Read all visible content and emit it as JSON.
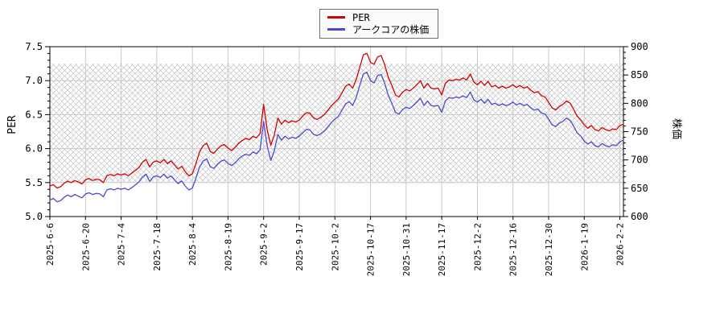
{
  "legend": {
    "items": [
      {
        "label": "PER",
        "color": "#d40000"
      },
      {
        "label": "アークコアの株価",
        "color": "#4a4ad0"
      }
    ]
  },
  "chart_data": {
    "type": "line",
    "title": "",
    "grid": true,
    "legend_position": "top-center",
    "hatch_band": {
      "axis": "left",
      "from": 5.5,
      "to": 7.25
    },
    "x_tick_labels": [
      "2025-6-6",
      "2025-6-20",
      "2025-7-4",
      "2025-7-18",
      "2025-8-4",
      "2025-8-19",
      "2025-9-2",
      "2025-9-17",
      "2025-10-2",
      "2025-10-17",
      "2025-10-31",
      "2025-11-17",
      "2025-12-2",
      "2025-12-16",
      "2025-12-30",
      "2026-1-19",
      "2026-2-2"
    ],
    "left_axis": {
      "label": "PER",
      "min": 5.0,
      "max": 7.5,
      "tick_step": 0.5,
      "minor_step": 0.1,
      "ticks": [
        "5.0",
        "5.5",
        "6.0",
        "6.5",
        "7.0",
        "7.5"
      ]
    },
    "right_axis": {
      "label": "株価",
      "min": 600,
      "max": 900,
      "tick_step": 50,
      "minor_step": 10,
      "ticks": [
        "600",
        "650",
        "700",
        "750",
        "800",
        "850",
        "900"
      ]
    },
    "series": [
      {
        "name": "PER",
        "axis": "left",
        "color": "#d40000",
        "values": [
          5.45,
          5.47,
          5.42,
          5.44,
          5.49,
          5.52,
          5.5,
          5.53,
          5.51,
          5.48,
          5.54,
          5.56,
          5.53,
          5.55,
          5.54,
          5.5,
          5.6,
          5.62,
          5.6,
          5.63,
          5.61,
          5.63,
          5.6,
          5.64,
          5.68,
          5.72,
          5.8,
          5.84,
          5.73,
          5.8,
          5.82,
          5.79,
          5.84,
          5.78,
          5.82,
          5.76,
          5.7,
          5.74,
          5.66,
          5.6,
          5.63,
          5.78,
          5.95,
          6.04,
          6.08,
          5.96,
          5.93,
          5.99,
          6.04,
          6.06,
          6.01,
          5.97,
          6.02,
          6.08,
          6.12,
          6.15,
          6.13,
          6.18,
          6.16,
          6.22,
          6.65,
          6.28,
          6.05,
          6.2,
          6.45,
          6.36,
          6.42,
          6.38,
          6.41,
          6.39,
          6.42,
          6.48,
          6.53,
          6.52,
          6.45,
          6.43,
          6.46,
          6.5,
          6.56,
          6.63,
          6.68,
          6.73,
          6.82,
          6.92,
          6.95,
          6.89,
          7.02,
          7.2,
          7.38,
          7.4,
          7.27,
          7.24,
          7.35,
          7.37,
          7.23,
          7.05,
          6.93,
          6.79,
          6.76,
          6.83,
          6.87,
          6.85,
          6.89,
          6.94,
          7.0,
          6.89,
          6.96,
          6.89,
          6.88,
          6.89,
          6.79,
          6.96,
          7.01,
          7.0,
          7.02,
          7.01,
          7.04,
          7.01,
          7.1,
          6.98,
          6.94,
          6.99,
          6.93,
          6.99,
          6.91,
          6.93,
          6.89,
          6.92,
          6.89,
          6.91,
          6.94,
          6.9,
          6.93,
          6.89,
          6.91,
          6.86,
          6.82,
          6.84,
          6.78,
          6.76,
          6.68,
          6.6,
          6.57,
          6.62,
          6.65,
          6.7,
          6.67,
          6.58,
          6.48,
          6.42,
          6.35,
          6.3,
          6.34,
          6.28,
          6.26,
          6.31,
          6.28,
          6.26,
          6.29,
          6.28,
          6.34,
          6.36
        ]
      },
      {
        "name": "アークコアの株価",
        "axis": "right",
        "color": "#4a4ad0",
        "values": [
          629,
          632,
          626,
          628,
          634,
          638,
          635,
          639,
          636,
          633,
          640,
          642,
          639,
          641,
          640,
          635,
          647,
          649,
          647,
          650,
          648,
          650,
          647,
          651,
          656,
          661,
          670,
          675,
          662,
          670,
          672,
          669,
          675,
          668,
          672,
          665,
          658,
          663,
          654,
          647,
          650,
          668,
          687,
          698,
          702,
          688,
          685,
          692,
          698,
          700,
          694,
          690,
          695,
          702,
          707,
          710,
          708,
          714,
          711,
          718,
          768,
          725,
          699,
          716,
          745,
          735,
          742,
          737,
          740,
          738,
          742,
          748,
          754,
          753,
          745,
          743,
          746,
          751,
          758,
          766,
          772,
          777,
          788,
          799,
          803,
          796,
          811,
          832,
          852,
          855,
          840,
          836,
          849,
          851,
          835,
          814,
          800,
          784,
          781,
          789,
          793,
          791,
          796,
          802,
          809,
          796,
          804,
          796,
          795,
          796,
          784,
          804,
          810,
          809,
          811,
          810,
          813,
          810,
          820,
          806,
          802,
          807,
          800,
          807,
          798,
          800,
          796,
          799,
          796,
          798,
          802,
          797,
          800,
          796,
          798,
          792,
          788,
          790,
          783,
          781,
          772,
          762,
          759,
          765,
          768,
          774,
          770,
          760,
          748,
          742,
          733,
          728,
          732,
          725,
          723,
          729,
          725,
          723,
          727,
          725,
          732,
          735
        ]
      }
    ],
    "plot_style": {
      "grid_color": "#c9c9c9",
      "hatch_color": "#b8b8b8",
      "axis_color": "#000000",
      "background": "#ffffff"
    }
  }
}
